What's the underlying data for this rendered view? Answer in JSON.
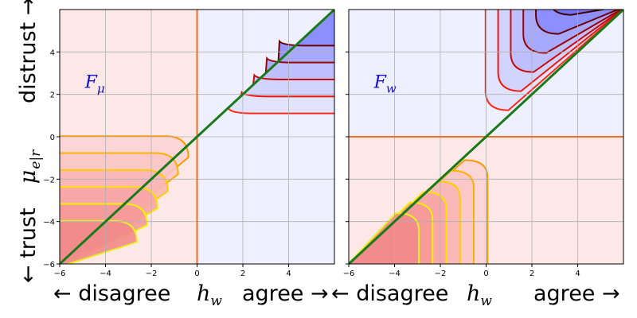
{
  "chart_data": [
    {
      "type": "contour",
      "panel_label": "F",
      "panel_sub": "μ",
      "xlabel": {
        "left": "← disagree",
        "var": "h",
        "sub": "w",
        "right": "agree →"
      },
      "ylabel": {
        "top": "distrust →",
        "var": "μ",
        "sub": "e|r",
        "bottom": "← trust"
      },
      "xlim": [
        -6,
        6
      ],
      "ylim": [
        -6,
        6
      ],
      "xticks": [
        "−6",
        "−4",
        "−2",
        "0",
        "2",
        "4"
      ],
      "yticks": [
        "−6",
        "−4",
        "−2",
        "0",
        "2",
        "4"
      ],
      "grid": true,
      "diagonal": {
        "from": [
          -6,
          -6
        ],
        "to": [
          6,
          6
        ],
        "color": "#1a7a1a"
      },
      "divider": {
        "orientation": "vertical",
        "at": 0,
        "color": "#f07020"
      },
      "regions": [
        {
          "name": "disagree",
          "color": "#fde8e8"
        },
        {
          "name": "agree",
          "color": "#eef0ff"
        }
      ],
      "contour_levels_upper": [
        1,
        2,
        3,
        4,
        5
      ],
      "contour_levels_lower": [
        0.4,
        1.4,
        2.4,
        3.4,
        4.4,
        5.4
      ]
    },
    {
      "type": "contour",
      "panel_label": "F",
      "panel_sub": "w",
      "xlabel": {
        "left": "← disagree",
        "var": "h",
        "sub": "w",
        "right": "agree →"
      },
      "xlim": [
        -6,
        6
      ],
      "ylim": [
        -6,
        6
      ],
      "xticks": [
        "−6",
        "−4",
        "−2",
        "0",
        "2",
        "4"
      ],
      "grid": true,
      "diagonal": {
        "from": [
          -6,
          -6
        ],
        "to": [
          6,
          6
        ],
        "color": "#1a7a1a"
      },
      "divider": {
        "orientation": "horizontal",
        "at": 0,
        "color": "#f07020"
      },
      "regions": [
        {
          "name": "trust",
          "color": "#fde8e8"
        },
        {
          "name": "distrust",
          "color": "#eef0ff"
        }
      ],
      "contour_levels_upper": [
        0.5,
        1.5,
        2.5,
        3.5,
        4.5,
        5.5
      ],
      "contour_levels_lower": [
        0.4,
        1.4,
        2.4,
        3.4,
        4.4,
        5.4
      ]
    }
  ]
}
